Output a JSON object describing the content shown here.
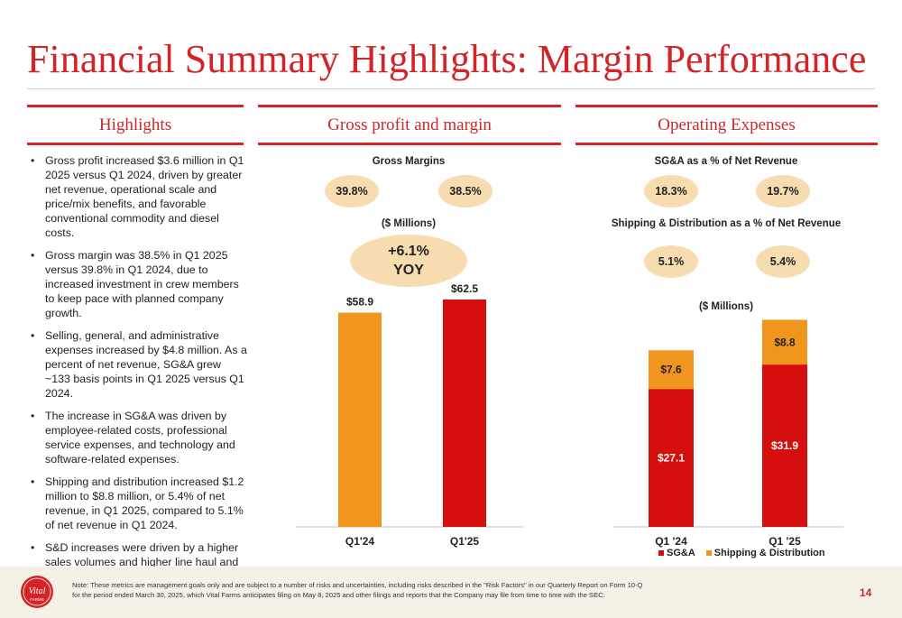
{
  "title": "Financial Summary Highlights: Margin Performance",
  "columns": {
    "highlights": "Highlights",
    "gross": "Gross profit and margin",
    "opex": "Operating Expenses"
  },
  "bullets": [
    "Gross profit increased $3.6 million in Q1 2025 versus Q1 2024, driven by greater net revenue, operational scale and price/mix benefits, and favorable conventional commodity and diesel costs.",
    "Gross margin was 38.5% in Q1 2025 versus 39.8% in Q1 2024, due to increased investment in crew members to keep pace with planned company growth.",
    "Selling, general, and administrative expenses increased by $4.8 million. As a percent of net revenue, SG&A grew ~133 basis points in Q1 2025 versus Q1 2024.",
    "The increase in SG&A was driven by employee-related costs, professional service expenses, and technology and software-related expenses.",
    "Shipping and distribution increased $1.2 million to $8.8 million, or 5.4% of net revenue, in Q1 2025, compared to 5.1% of net revenue in Q1 2024.",
    "S&D increases were driven by a higher sales volumes and higher line haul and fuel rates."
  ],
  "gross": {
    "margins_title": "Gross Margins",
    "margin_q1_24": "39.8%",
    "margin_q1_25": "38.5%",
    "units": "($ Millions)",
    "yoy_value": "+6.1%",
    "yoy_label": "YOY"
  },
  "opex": {
    "sga_title": "SG&A as a % of Net Revenue",
    "sga_q1_24": "18.3%",
    "sga_q1_25": "19.7%",
    "ship_title": "Shipping & Distribution as a % of Net Revenue",
    "ship_q1_24": "5.1%",
    "ship_q1_25": "5.4%",
    "units": "($ Millions)"
  },
  "chart_data": [
    {
      "type": "bar",
      "title": "",
      "categories": [
        "Q1'24",
        "Q1'25"
      ],
      "values": [
        58.9,
        62.5
      ],
      "labels": [
        "$58.9",
        "$62.5"
      ],
      "colors": [
        "#f0961e",
        "#d50e0e"
      ],
      "ylim": [
        0,
        62.5
      ]
    },
    {
      "type": "bar",
      "stacked": true,
      "categories": [
        "Q1 '24",
        "Q1 '25"
      ],
      "series": [
        {
          "name": "SG&A",
          "values": [
            27.1,
            31.9
          ],
          "labels": [
            "$27.1",
            "$31.9"
          ],
          "color": "#d50e0e"
        },
        {
          "name": "Shipping & Distribution",
          "values": [
            7.6,
            8.8
          ],
          "labels": [
            "$7.6",
            "$8.8"
          ],
          "color": "#f0961e"
        }
      ],
      "legend": "bottom"
    }
  ],
  "footer": {
    "note": "Note: These metrics are management goals only and are subject to a number of risks and uncertainties, including risks described in the \"Risk Factors\" in our Quarterly Report on Form 10-Q for the period ended March 30, 2025, which Vital Farms anticipates filing on May 8, 2025 and other filings and reports that the Company may file from time to time with the SEC.",
    "page": "14",
    "logo_text": "Vital FARMS"
  }
}
